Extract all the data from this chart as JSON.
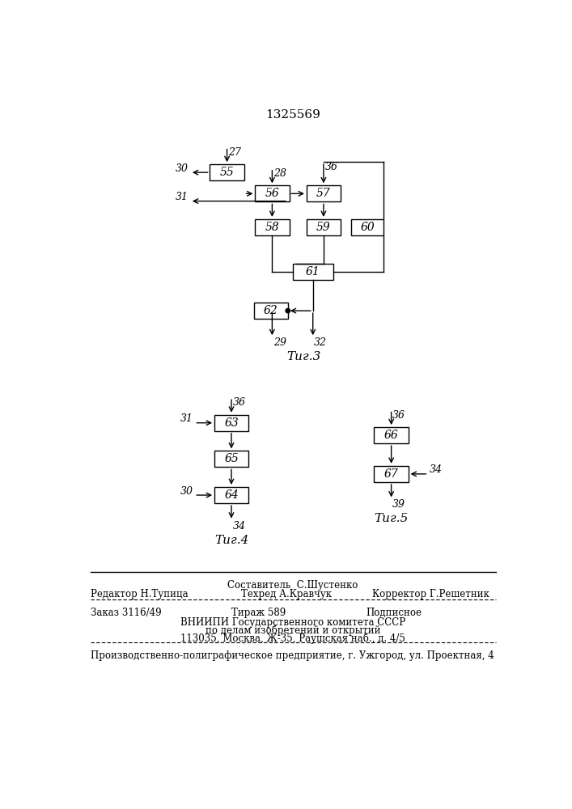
{
  "title": "1325569",
  "fig3_label": "Τиг.3",
  "fig4_label": "Τиг.4",
  "fig5_label": "Τиг.5",
  "background_color": "#ffffff",
  "footer_line1_left": "Редактор Н.Тупица",
  "footer_line1_mid": "Техред А.Кравчук",
  "footer_line1_right": "Корректор Г.Решетник",
  "footer_sostavitel": "Составитель  С.Шустенко",
  "footer_zakaz": "Заказ 3116/49",
  "footer_tirazh": "Тираж 589",
  "footer_podpisnoe": "Подписное",
  "footer_vnipi": "ВНИИПИ Государственного комитета СССР",
  "footer_po_delam": "по делам изобретений и открытий",
  "footer_address": "113035, Москва, Ж-35, Раушская наб., д. 4/5",
  "footer_predpr": "Производственно-полиграфическое предприятие, г. Ужгород, ул. Проектная, 4"
}
